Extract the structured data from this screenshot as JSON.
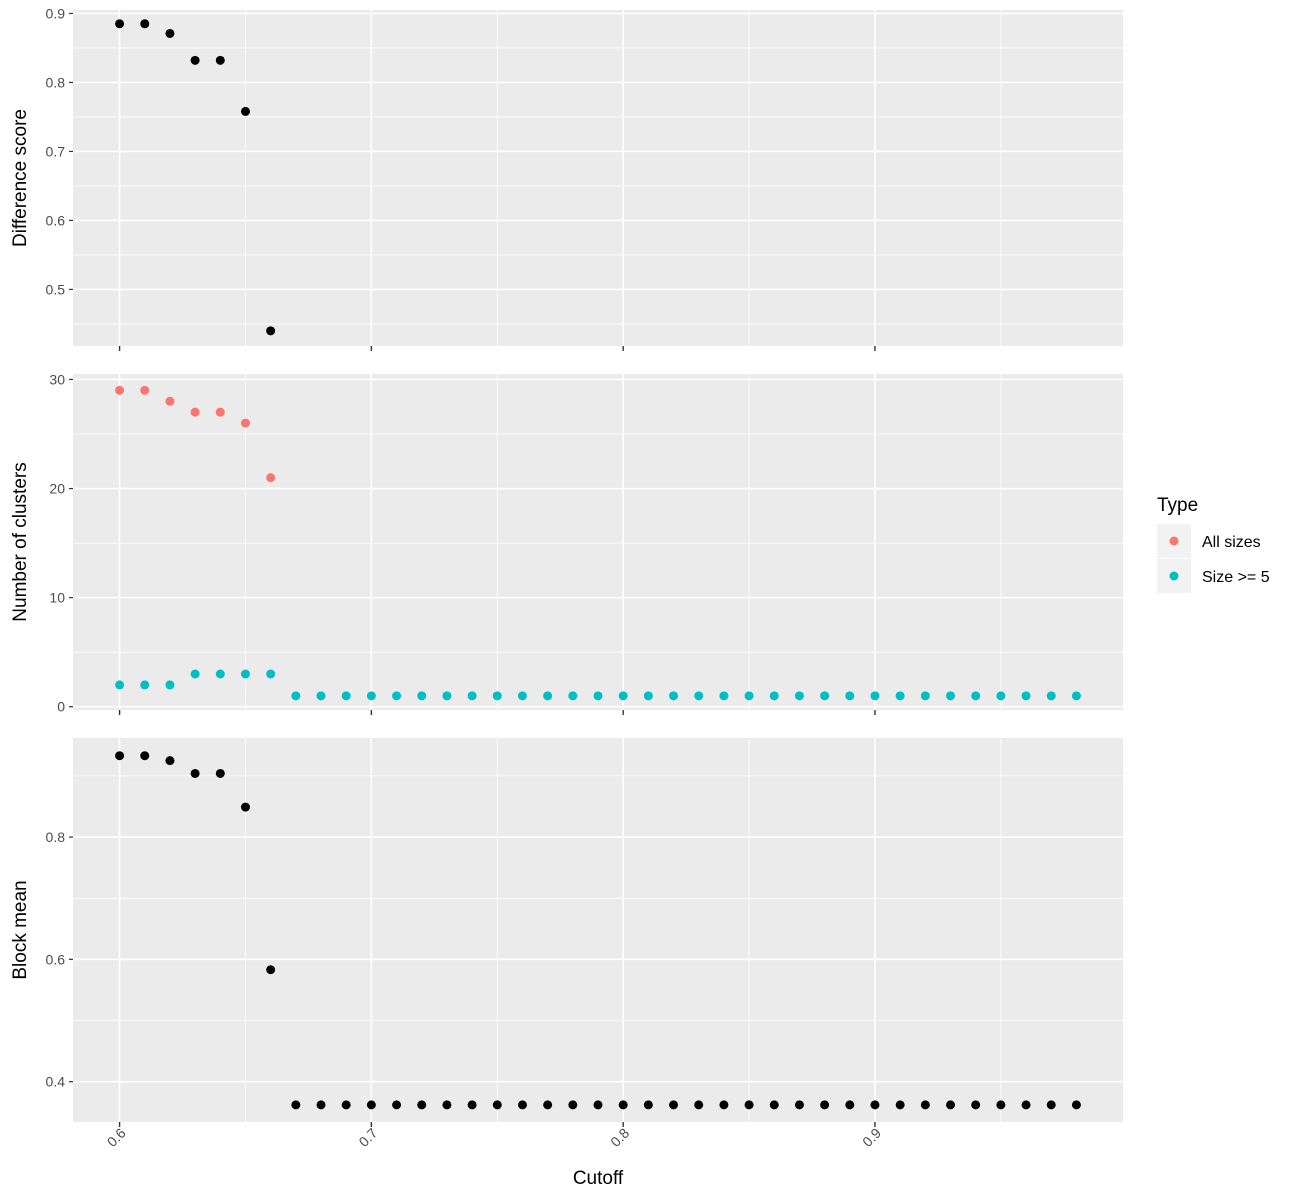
{
  "chart_data": {
    "type": "scatter",
    "xlabel": "Cutoff",
    "x_ticks": [
      0.6,
      0.7,
      0.8,
      0.9
    ],
    "x_tick_labels": [
      "0.6",
      "0.7",
      "0.8",
      "0.9"
    ],
    "xlim": [
      0.5815,
      0.9985
    ],
    "colors": {
      "panel_bg": "#ebebeb",
      "grid": "#ffffff",
      "point": "#000000",
      "all_sizes": "#f8766d",
      "size_ge_5": "#00bfc4"
    },
    "legend": {
      "title": "Type",
      "position": "right",
      "entries": [
        {
          "label": "All sizes",
          "color": "#f8766d"
        },
        {
          "label": "Size >= 5",
          "color": "#00bfc4"
        }
      ]
    },
    "panels": [
      {
        "ylabel": "Difference score",
        "ylim": [
          0.418,
          0.905
        ],
        "y_ticks": [
          0.5,
          0.6,
          0.7,
          0.8,
          0.9
        ],
        "y_tick_labels": [
          "0.5",
          "0.6",
          "0.7",
          "0.8",
          "0.9"
        ],
        "y_minor": [
          0.45,
          0.55,
          0.65,
          0.75,
          0.85
        ],
        "series": [
          {
            "color": "#000000",
            "x": [
              0.6,
              0.61,
              0.62,
              0.63,
              0.64,
              0.65,
              0.66
            ],
            "y": [
              0.885,
              0.885,
              0.871,
              0.832,
              0.832,
              0.758,
              0.44
            ]
          }
        ]
      },
      {
        "ylabel": "Number of clusters",
        "ylim": [
          -0.3,
          30.5
        ],
        "y_ticks": [
          0,
          10,
          20,
          30
        ],
        "y_tick_labels": [
          "0",
          "10",
          "20",
          "30"
        ],
        "y_minor": [
          5,
          15,
          25
        ],
        "series": [
          {
            "name": "All sizes",
            "color": "#f8766d",
            "x": [
              0.6,
              0.61,
              0.62,
              0.63,
              0.64,
              0.65,
              0.66
            ],
            "y": [
              29,
              29,
              28,
              27,
              27,
              26,
              21
            ]
          },
          {
            "name": "Size >= 5",
            "color": "#00bfc4",
            "x": [
              0.6,
              0.61,
              0.62,
              0.63,
              0.64,
              0.65,
              0.66,
              0.67,
              0.68,
              0.69,
              0.7,
              0.71,
              0.72,
              0.73,
              0.74,
              0.75,
              0.76,
              0.77,
              0.78,
              0.79,
              0.8,
              0.81,
              0.82,
              0.83,
              0.84,
              0.85,
              0.86,
              0.87,
              0.88,
              0.89,
              0.9,
              0.91,
              0.92,
              0.93,
              0.94,
              0.95,
              0.96,
              0.97,
              0.98
            ],
            "y": [
              2,
              2,
              2,
              3,
              3,
              3,
              3,
              1,
              1,
              1,
              1,
              1,
              1,
              1,
              1,
              1,
              1,
              1,
              1,
              1,
              1,
              1,
              1,
              1,
              1,
              1,
              1,
              1,
              1,
              1,
              1,
              1,
              1,
              1,
              1,
              1,
              1,
              1,
              1
            ]
          }
        ]
      },
      {
        "ylabel": "Block mean",
        "ylim": [
          0.334,
          0.962
        ],
        "y_ticks": [
          0.4,
          0.6,
          0.8
        ],
        "y_tick_labels": [
          "0.4",
          "0.6",
          "0.8"
        ],
        "y_minor": [
          0.5,
          0.7,
          0.9
        ],
        "series": [
          {
            "color": "#000000",
            "x": [
              0.6,
              0.61,
              0.62,
              0.63,
              0.64,
              0.65,
              0.66,
              0.67,
              0.68,
              0.69,
              0.7,
              0.71,
              0.72,
              0.73,
              0.74,
              0.75,
              0.76,
              0.77,
              0.78,
              0.79,
              0.8,
              0.81,
              0.82,
              0.83,
              0.84,
              0.85,
              0.86,
              0.87,
              0.88,
              0.89,
              0.9,
              0.91,
              0.92,
              0.93,
              0.94,
              0.95,
              0.96,
              0.97,
              0.98
            ],
            "y": [
              0.933,
              0.933,
              0.925,
              0.904,
              0.904,
              0.849,
              0.583,
              0.362,
              0.362,
              0.362,
              0.362,
              0.362,
              0.362,
              0.362,
              0.362,
              0.362,
              0.362,
              0.362,
              0.362,
              0.362,
              0.362,
              0.362,
              0.362,
              0.362,
              0.362,
              0.362,
              0.362,
              0.362,
              0.362,
              0.362,
              0.362,
              0.362,
              0.362,
              0.362,
              0.362,
              0.362,
              0.362,
              0.362,
              0.362
            ]
          }
        ]
      }
    ]
  }
}
